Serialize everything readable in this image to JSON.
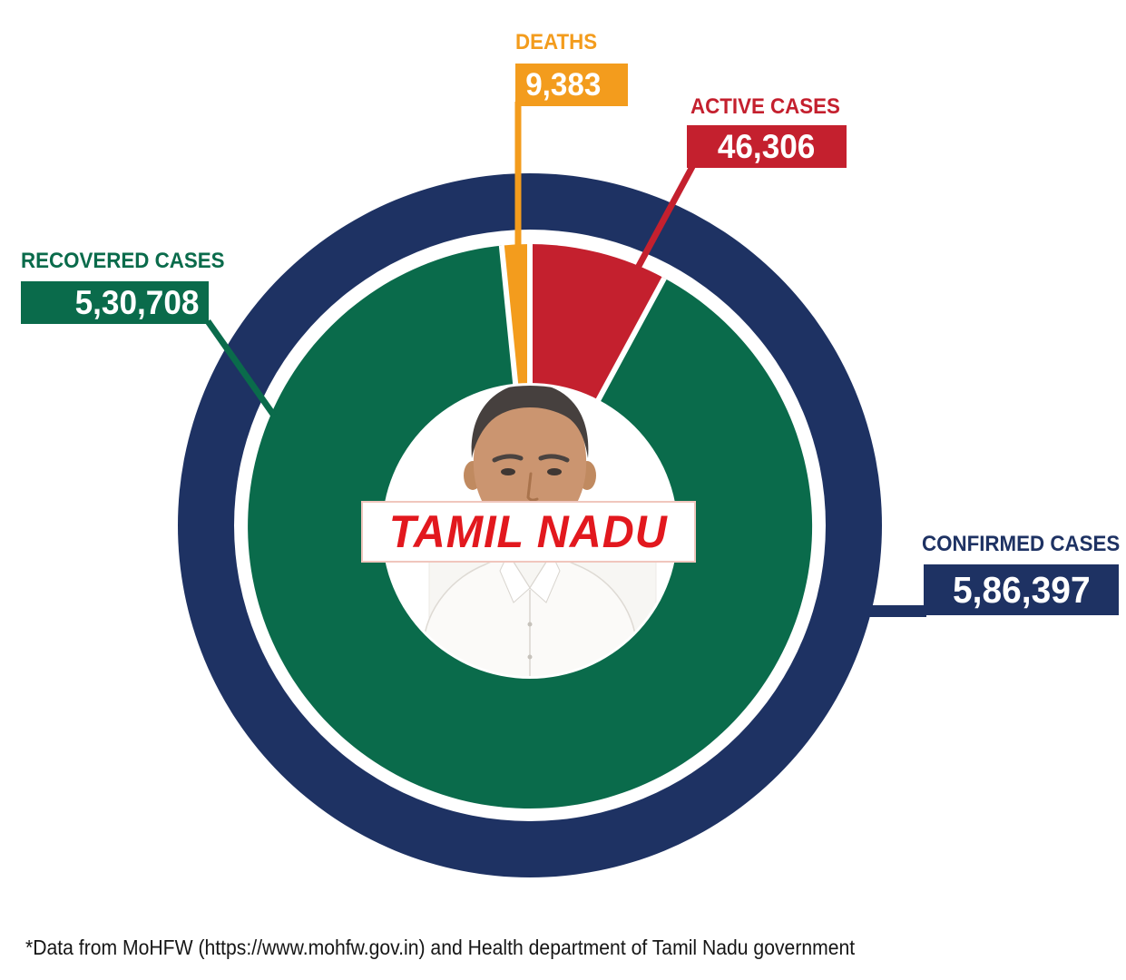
{
  "chart_data": {
    "type": "pie",
    "variant": "donut-infographic",
    "title": "TAMIL NADU",
    "total_label": "CONFIRMED CASES",
    "total_value": 586397,
    "total_value_text": "5,86,397",
    "segments": [
      {
        "label": "DEATHS",
        "value": 9383,
        "value_text": "9,383",
        "color": "#f39c1d"
      },
      {
        "label": "ACTIVE CASES",
        "value": 46306,
        "value_text": "46,306",
        "color": "#c4202e"
      },
      {
        "label": "RECOVERED CASES",
        "value": 530708,
        "value_text": "5,30,708",
        "color": "#0a6b4b"
      }
    ],
    "ring_color": "#1e3263",
    "legend_position": "callouts-around-donut",
    "layout_note": "outer navy ring = confirmed total; inner pie clockwise from top: deaths (ends at 12 o'clock), active, recovered"
  },
  "center": {
    "banner_text": "TAMIL NADU",
    "banner_text_color": "#e2181e",
    "photo_alt": "portrait-of-man-in-white-shirt"
  },
  "footer": {
    "source_note": "*Data from MoHFW (https://www.mohfw.gov.in) and Health department of Tamil Nadu government"
  }
}
